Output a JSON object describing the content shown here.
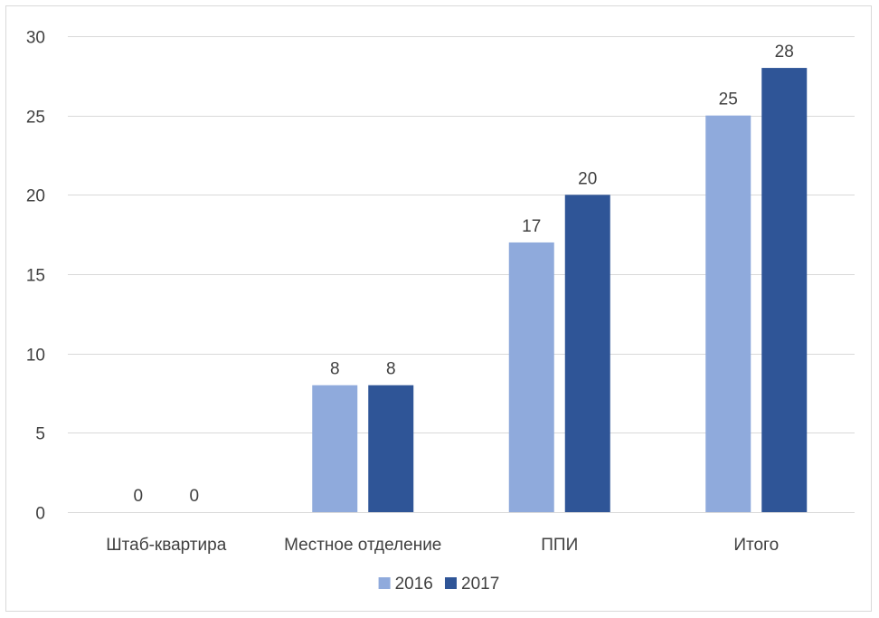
{
  "chart_data": {
    "type": "bar",
    "title": "",
    "xlabel": "",
    "ylabel": "",
    "categories": [
      "Штаб-квартира",
      "Местное отделение",
      "ППИ",
      "Итого"
    ],
    "series": [
      {
        "name": "2016",
        "values": [
          0,
          8,
          17,
          25
        ],
        "color": "#8faadc"
      },
      {
        "name": "2017",
        "values": [
          0,
          8,
          20,
          28
        ],
        "color": "#2f5597"
      }
    ],
    "ylim": [
      0,
      30
    ],
    "yticks": [
      0,
      5,
      10,
      15,
      20,
      25,
      30
    ],
    "grid": true,
    "legend": "bottom",
    "gridline_color": "#d9d9d9",
    "text_color": "#404040"
  }
}
